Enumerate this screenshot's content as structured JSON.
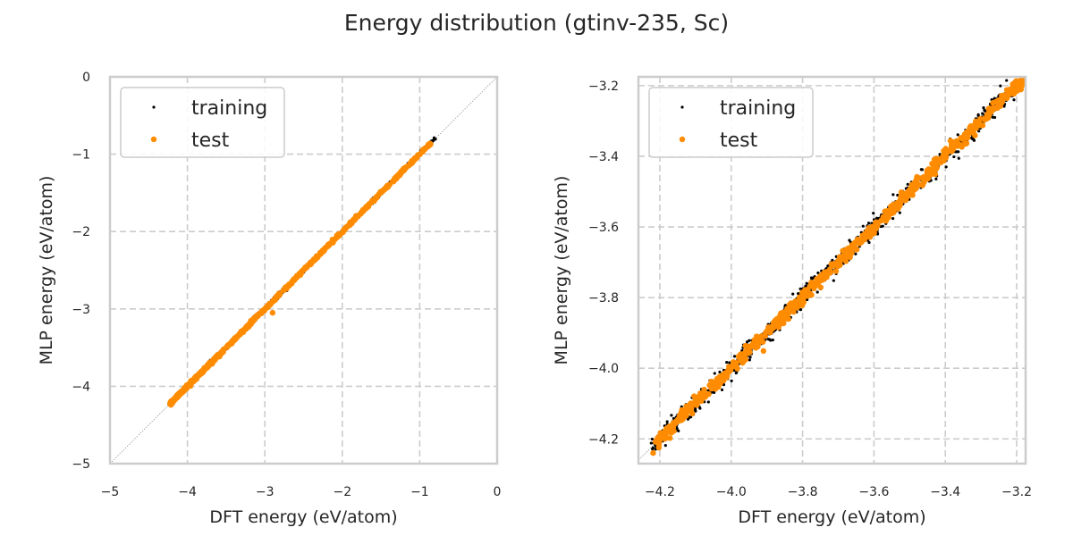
{
  "chart_data": [
    {
      "type": "scatter",
      "suptitle": "Energy distribution (gtinv-235, Sc)",
      "title": "",
      "xlabel": "DFT energy (eV/atom)",
      "ylabel": "MLP energy (eV/atom)",
      "xlim": [
        -5,
        0
      ],
      "ylim": [
        -5,
        0
      ],
      "xticks": [
        -5,
        -4,
        -3,
        -2,
        -1,
        0
      ],
      "yticks": [
        -5,
        -4,
        -3,
        -2,
        -1,
        0
      ],
      "xtick_labels": [
        "−5",
        "−4",
        "−3",
        "−2",
        "−1",
        "0"
      ],
      "ytick_labels": [
        "−5",
        "−4",
        "−3",
        "−2",
        "−1",
        "0"
      ],
      "grid": true,
      "diagonal_reference": true,
      "legend": {
        "placement": "top-left",
        "entries": [
          "training",
          "test"
        ]
      },
      "series": [
        {
          "name": "training",
          "color": "#000000",
          "range": [
            -4.22,
            -0.79
          ],
          "spread": 0.012,
          "density": "dense",
          "outliers": []
        },
        {
          "name": "test",
          "color": "#ff8c00",
          "range": [
            -4.22,
            -0.86
          ],
          "spread": 0.008,
          "density": "dense",
          "outliers": [
            [
              -2.9,
              -3.05
            ]
          ]
        }
      ]
    },
    {
      "type": "scatter",
      "title": "",
      "xlabel": "DFT energy (eV/atom)",
      "ylabel": "MLP energy (eV/atom)",
      "xlim": [
        -4.26,
        -3.175
      ],
      "ylim": [
        -4.27,
        -3.175
      ],
      "xticks": [
        -4.2,
        -4.0,
        -3.8,
        -3.6,
        -3.4,
        -3.2
      ],
      "yticks": [
        -4.2,
        -4.0,
        -3.8,
        -3.6,
        -3.4,
        -3.2
      ],
      "xtick_labels": [
        "−4.2",
        "−4.0",
        "−3.8",
        "−3.6",
        "−3.4",
        "−3.2"
      ],
      "ytick_labels": [
        "−4.2",
        "−4.0",
        "−3.8",
        "−3.6",
        "−3.4",
        "−3.2"
      ],
      "grid": true,
      "diagonal_reference": true,
      "legend": {
        "placement": "top-left",
        "entries": [
          "training",
          "test"
        ]
      },
      "series": [
        {
          "name": "training",
          "color": "#000000",
          "range": [
            -4.22,
            -3.18
          ],
          "spread": 0.012,
          "density": "dense",
          "outliers": []
        },
        {
          "name": "test",
          "color": "#ff8c00",
          "range": [
            -4.22,
            -3.18
          ],
          "spread": 0.008,
          "density": "dense",
          "outliers": []
        }
      ]
    }
  ]
}
